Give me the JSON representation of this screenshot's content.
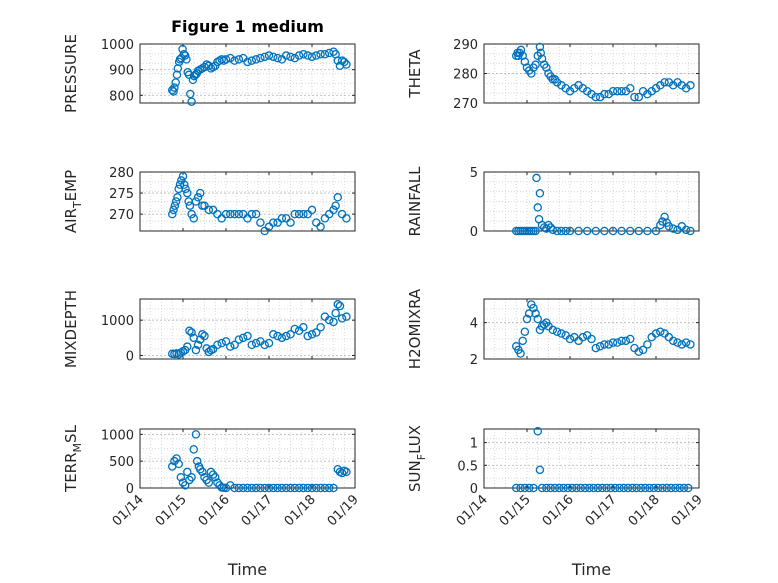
{
  "chart_data": [
    {
      "type": "scatter",
      "title": "Figure 1 medium",
      "ylabel": "PRESSURE",
      "xlabel": "",
      "ylim": [
        770,
        1000
      ],
      "yticks": [
        800,
        900,
        1000
      ],
      "ytick_labels": [
        "800",
        "900",
        "1000"
      ],
      "xlim": [
        0,
        5
      ],
      "xticks": [
        0,
        1,
        2,
        3,
        4,
        5
      ],
      "xtick_labels": [],
      "grid": true,
      "x": [
        0.75,
        0.78,
        0.8,
        0.83,
        0.86,
        0.88,
        0.91,
        0.93,
        0.96,
        0.99,
        1.02,
        1.05,
        1.08,
        1.11,
        1.14,
        1.17,
        1.2,
        1.23,
        1.26,
        1.29,
        1.32,
        1.35,
        1.4,
        1.45,
        1.5,
        1.55,
        1.6,
        1.65,
        1.7,
        1.75,
        1.8,
        1.85,
        1.9,
        1.95,
        2.0,
        2.1,
        2.2,
        2.3,
        2.4,
        2.5,
        2.6,
        2.7,
        2.8,
        2.9,
        3.0,
        3.1,
        3.2,
        3.3,
        3.4,
        3.5,
        3.6,
        3.7,
        3.8,
        3.9,
        4.0,
        4.1,
        4.2,
        4.3,
        4.4,
        4.5,
        4.55,
        4.6,
        4.65,
        4.7,
        4.75,
        4.8
      ],
      "y": [
        820,
        815,
        830,
        850,
        880,
        905,
        930,
        940,
        945,
        980,
        960,
        955,
        940,
        890,
        880,
        805,
        775,
        860,
        875,
        880,
        885,
        895,
        900,
        905,
        910,
        920,
        915,
        905,
        910,
        915,
        930,
        935,
        940,
        935,
        940,
        945,
        935,
        940,
        945,
        930,
        935,
        940,
        945,
        950,
        955,
        950,
        945,
        940,
        955,
        950,
        945,
        955,
        960,
        955,
        950,
        955,
        960,
        960,
        965,
        970,
        960,
        935,
        915,
        935,
        930,
        920
      ]
    },
    {
      "type": "scatter",
      "title": "",
      "ylabel": "THETA",
      "xlabel": "",
      "ylim": [
        270,
        290
      ],
      "yticks": [
        270,
        280,
        290
      ],
      "ytick_labels": [
        "270",
        "280",
        "290"
      ],
      "xlim": [
        0,
        5
      ],
      "xticks": [
        0,
        1,
        2,
        3,
        4,
        5
      ],
      "xtick_labels": [],
      "grid": true,
      "x": [
        0.75,
        0.78,
        0.8,
        0.83,
        0.86,
        0.9,
        0.95,
        1.0,
        1.05,
        1.1,
        1.15,
        1.2,
        1.25,
        1.3,
        1.32,
        1.35,
        1.4,
        1.45,
        1.5,
        1.55,
        1.6,
        1.65,
        1.7,
        1.8,
        1.9,
        2.0,
        2.1,
        2.2,
        2.3,
        2.4,
        2.5,
        2.6,
        2.7,
        2.8,
        2.9,
        3.0,
        3.1,
        3.2,
        3.3,
        3.4,
        3.5,
        3.6,
        3.7,
        3.8,
        3.9,
        4.0,
        4.1,
        4.2,
        4.3,
        4.4,
        4.5,
        4.6,
        4.7,
        4.8
      ],
      "y": [
        286,
        287,
        286,
        287,
        288,
        286,
        284,
        282,
        281,
        280,
        282,
        283,
        286,
        289,
        287,
        285,
        283,
        282,
        280,
        279,
        278,
        278,
        277,
        276,
        275,
        274,
        275,
        276,
        275,
        274,
        273,
        272,
        272,
        273,
        273,
        274,
        274,
        274,
        274,
        275,
        272,
        272,
        274,
        273,
        274,
        275,
        276,
        277,
        277,
        276,
        277,
        276,
        275,
        276
      ]
    },
    {
      "type": "scatter",
      "title": "",
      "ylabel": "AIR_TEMP",
      "xlabel": "",
      "ylim": [
        266,
        280
      ],
      "yticks": [
        270,
        275,
        280
      ],
      "ytick_labels": [
        "270",
        "275",
        "280"
      ],
      "xlim": [
        0,
        5
      ],
      "xticks": [
        0,
        1,
        2,
        3,
        4,
        5
      ],
      "xtick_labels": [],
      "grid": true,
      "x": [
        0.75,
        0.78,
        0.81,
        0.84,
        0.87,
        0.9,
        0.93,
        0.96,
        1.0,
        1.03,
        1.06,
        1.1,
        1.13,
        1.16,
        1.2,
        1.25,
        1.3,
        1.35,
        1.4,
        1.45,
        1.5,
        1.6,
        1.7,
        1.8,
        1.9,
        2.0,
        2.1,
        2.2,
        2.3,
        2.4,
        2.5,
        2.6,
        2.7,
        2.8,
        2.9,
        3.0,
        3.1,
        3.2,
        3.3,
        3.4,
        3.5,
        3.6,
        3.7,
        3.8,
        3.9,
        4.0,
        4.1,
        4.2,
        4.3,
        4.4,
        4.5,
        4.55,
        4.6,
        4.7,
        4.8
      ],
      "y": [
        270,
        271,
        272,
        273,
        274,
        276,
        277,
        278,
        279,
        277,
        276,
        275,
        273,
        272,
        270,
        269,
        273,
        274,
        275,
        272,
        272,
        271,
        271,
        270,
        269,
        270,
        270,
        270,
        270,
        270,
        269,
        270,
        270,
        268,
        266,
        267,
        268,
        268,
        269,
        269,
        268,
        270,
        270,
        270,
        270,
        271,
        268,
        267,
        269,
        270,
        271,
        272,
        274,
        270,
        269
      ]
    },
    {
      "type": "scatter",
      "title": "",
      "ylabel": "RAINFALL",
      "xlabel": "",
      "ylim": [
        0,
        5
      ],
      "yticks": [
        0,
        5
      ],
      "ytick_labels": [
        "0",
        "5"
      ],
      "xlim": [
        0,
        5
      ],
      "xticks": [
        0,
        1,
        2,
        3,
        4,
        5
      ],
      "xtick_labels": [],
      "grid": true,
      "x": [
        0.75,
        0.8,
        0.85,
        0.9,
        0.95,
        1.0,
        1.05,
        1.1,
        1.15,
        1.2,
        1.22,
        1.25,
        1.28,
        1.3,
        1.35,
        1.4,
        1.45,
        1.5,
        1.55,
        1.6,
        1.7,
        1.8,
        1.9,
        2.0,
        2.2,
        2.4,
        2.6,
        2.8,
        3.0,
        3.2,
        3.4,
        3.6,
        3.8,
        4.0,
        4.1,
        4.15,
        4.2,
        4.25,
        4.3,
        4.4,
        4.5,
        4.6,
        4.7,
        4.8
      ],
      "y": [
        0,
        0,
        0,
        0,
        0,
        0,
        0,
        0,
        0,
        0,
        4.5,
        2.0,
        1.0,
        3.2,
        0.5,
        0.3,
        0.2,
        0.5,
        0.3,
        0.1,
        0,
        0,
        0,
        0,
        0,
        0,
        0,
        0,
        0,
        0,
        0,
        0,
        0,
        0,
        0.5,
        0.8,
        1.2,
        0.7,
        0.4,
        0.2,
        0.1,
        0.4,
        0.1,
        0
      ]
    },
    {
      "type": "scatter",
      "title": "",
      "ylabel": "MIXDEPTH",
      "xlabel": "",
      "ylim": [
        -100,
        1600
      ],
      "yticks": [
        0,
        1000
      ],
      "ytick_labels": [
        "0",
        "1000"
      ],
      "xlim": [
        0,
        5
      ],
      "xticks": [
        0,
        1,
        2,
        3,
        4,
        5
      ],
      "xtick_labels": [],
      "grid": true,
      "x": [
        0.75,
        0.8,
        0.85,
        0.9,
        0.95,
        1.0,
        1.05,
        1.1,
        1.15,
        1.2,
        1.25,
        1.3,
        1.35,
        1.4,
        1.45,
        1.5,
        1.55,
        1.6,
        1.65,
        1.7,
        1.8,
        1.9,
        2.0,
        2.1,
        2.2,
        2.3,
        2.4,
        2.5,
        2.6,
        2.7,
        2.8,
        2.9,
        3.0,
        3.1,
        3.2,
        3.3,
        3.4,
        3.5,
        3.6,
        3.7,
        3.8,
        3.9,
        4.0,
        4.1,
        4.2,
        4.3,
        4.4,
        4.5,
        4.55,
        4.6,
        4.65,
        4.7,
        4.8
      ],
      "y": [
        50,
        40,
        60,
        30,
        80,
        120,
        150,
        250,
        700,
        650,
        500,
        150,
        300,
        450,
        600,
        550,
        200,
        100,
        150,
        180,
        300,
        350,
        400,
        250,
        300,
        450,
        500,
        550,
        300,
        350,
        400,
        300,
        350,
        600,
        550,
        500,
        550,
        600,
        750,
        700,
        800,
        550,
        600,
        650,
        800,
        1100,
        1000,
        950,
        1200,
        1450,
        1400,
        1050,
        1100
      ]
    },
    {
      "type": "scatter",
      "title": "",
      "ylabel": "H2OMIXRA",
      "xlabel": "",
      "ylim": [
        2,
        5.3
      ],
      "yticks": [
        2,
        4
      ],
      "ytick_labels": [
        "2",
        "4"
      ],
      "xlim": [
        0,
        5
      ],
      "xticks": [
        0,
        1,
        2,
        3,
        4,
        5
      ],
      "xtick_labels": [],
      "grid": true,
      "x": [
        0.75,
        0.8,
        0.85,
        0.9,
        0.95,
        1.0,
        1.05,
        1.1,
        1.15,
        1.2,
        1.25,
        1.3,
        1.35,
        1.4,
        1.45,
        1.5,
        1.6,
        1.7,
        1.8,
        1.9,
        2.0,
        2.1,
        2.2,
        2.3,
        2.4,
        2.5,
        2.6,
        2.7,
        2.8,
        2.9,
        3.0,
        3.1,
        3.2,
        3.3,
        3.4,
        3.5,
        3.6,
        3.7,
        3.8,
        3.9,
        4.0,
        4.1,
        4.2,
        4.3,
        4.4,
        4.5,
        4.6,
        4.7,
        4.8
      ],
      "y": [
        2.7,
        2.5,
        2.3,
        3.0,
        3.5,
        4.2,
        4.5,
        5.0,
        4.8,
        4.5,
        4.2,
        3.6,
        3.8,
        3.9,
        4.0,
        3.8,
        3.6,
        3.5,
        3.4,
        3.3,
        3.1,
        3.2,
        3.0,
        3.2,
        3.3,
        3.1,
        2.6,
        2.7,
        2.8,
        2.8,
        2.9,
        2.9,
        3.0,
        3.0,
        3.1,
        2.6,
        2.4,
        2.5,
        2.8,
        3.2,
        3.4,
        3.5,
        3.4,
        3.2,
        3.0,
        2.9,
        2.8,
        2.9,
        2.8
      ]
    },
    {
      "type": "scatter",
      "title": "",
      "ylabel": "TERR_MSL",
      "xlabel": "Time",
      "ylim": [
        0,
        1100
      ],
      "yticks": [
        0,
        500,
        1000
      ],
      "ytick_labels": [
        "0",
        "500",
        "1000"
      ],
      "xlim": [
        0,
        5
      ],
      "xticks": [
        0,
        1,
        2,
        3,
        4,
        5
      ],
      "xtick_labels": [
        "01/14",
        "01/15",
        "01/16",
        "01/17",
        "01/18",
        "01/19"
      ],
      "grid": true,
      "x": [
        0.75,
        0.8,
        0.85,
        0.9,
        0.95,
        1.0,
        1.05,
        1.1,
        1.15,
        1.2,
        1.25,
        1.3,
        1.33,
        1.37,
        1.4,
        1.45,
        1.5,
        1.55,
        1.6,
        1.65,
        1.7,
        1.75,
        1.8,
        1.85,
        1.9,
        1.95,
        2.0,
        2.1,
        2.2,
        2.3,
        2.4,
        2.5,
        2.6,
        2.7,
        2.8,
        2.9,
        3.0,
        3.1,
        3.2,
        3.3,
        3.4,
        3.5,
        3.6,
        3.7,
        3.8,
        3.9,
        4.0,
        4.1,
        4.2,
        4.3,
        4.4,
        4.5,
        4.6,
        4.65,
        4.7,
        4.75,
        4.8
      ],
      "y": [
        400,
        500,
        550,
        450,
        200,
        100,
        50,
        300,
        150,
        200,
        720,
        1000,
        500,
        400,
        350,
        300,
        200,
        150,
        100,
        300,
        250,
        200,
        100,
        50,
        10,
        5,
        0,
        50,
        0,
        0,
        0,
        0,
        0,
        0,
        0,
        0,
        0,
        0,
        0,
        0,
        0,
        0,
        0,
        0,
        0,
        0,
        0,
        0,
        0,
        0,
        0,
        0,
        350,
        300,
        280,
        320,
        300
      ]
    },
    {
      "type": "scatter",
      "title": "",
      "ylabel": "SUN_FLUX",
      "xlabel": "Time",
      "ylim": [
        0,
        1.3
      ],
      "yticks": [
        0,
        0.5,
        1
      ],
      "ytick_labels": [
        "0",
        "0.5",
        "1"
      ],
      "xlim": [
        0,
        5
      ],
      "xticks": [
        0,
        1,
        2,
        3,
        4,
        5
      ],
      "xtick_labels": [
        "01/14",
        "01/15",
        "01/16",
        "01/17",
        "01/18",
        "01/19"
      ],
      "grid": true,
      "x": [
        0.75,
        0.85,
        0.95,
        1.05,
        1.15,
        1.25,
        1.3,
        1.35,
        1.45,
        1.55,
        1.65,
        1.75,
        1.85,
        1.95,
        2.05,
        2.15,
        2.25,
        2.35,
        2.45,
        2.55,
        2.65,
        2.75,
        2.85,
        2.95,
        3.05,
        3.15,
        3.25,
        3.35,
        3.45,
        3.55,
        3.65,
        3.75,
        3.85,
        3.95,
        4.05,
        4.15,
        4.25,
        4.35,
        4.45,
        4.55,
        4.65,
        4.75
      ],
      "y": [
        0,
        0,
        0,
        0,
        0,
        1.25,
        0.4,
        0,
        0,
        0,
        0,
        0,
        0,
        0,
        0,
        0,
        0,
        0,
        0,
        0,
        0,
        0,
        0,
        0,
        0,
        0,
        0,
        0,
        0,
        0,
        0,
        0,
        0,
        0,
        0,
        0,
        0,
        0,
        0,
        0,
        0,
        0
      ]
    }
  ],
  "colors": {
    "marker": "#0072bd",
    "axis": "#262626",
    "grid": "#d0d0d0"
  }
}
